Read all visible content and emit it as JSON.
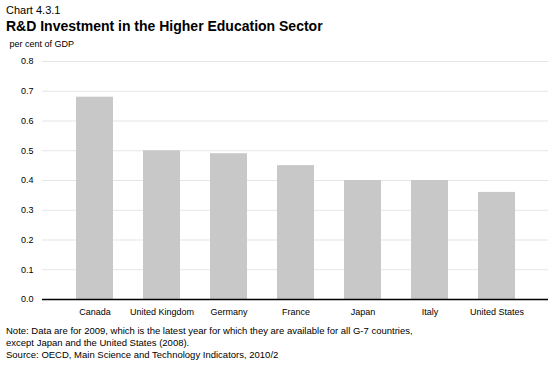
{
  "chart_data": {
    "type": "bar",
    "subtitle": "Chart 4.3.1",
    "title": "R&D Investment in the Higher Education Sector",
    "ylabel": "per cent of GDP",
    "categories": [
      "Canada",
      "United Kingdom",
      "Germany",
      "France",
      "Japan",
      "Italy",
      "United States"
    ],
    "values": [
      0.68,
      0.5,
      0.49,
      0.45,
      0.4,
      0.4,
      0.36
    ],
    "color": "#c8c8c8",
    "ylim": [
      0,
      0.8
    ],
    "yticks": [
      {
        "value": 0.0,
        "label": "0.0"
      },
      0.1,
      0.2,
      0.3,
      0.4,
      0.5,
      0.6,
      0.7,
      0.8
    ],
    "grid": true,
    "annotations": [
      "Note: Data are for 2009, which is the latest year for which they are available for all G-7 countries,",
      "except Japan and the United States (2008).",
      "Source: OECD, Main Science and Technology Indicators, 2010/2"
    ]
  }
}
